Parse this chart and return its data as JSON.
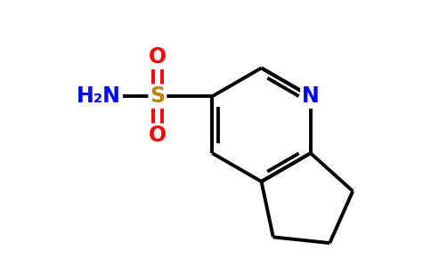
{
  "background_color": "#ffffff",
  "bond_color": "#000000",
  "nitrogen_color": "#0000ff",
  "oxygen_color": "#ff0000",
  "sulfur_color": "#b8860b",
  "h2n_color": "#0000ff",
  "line_width": 2.8,
  "figsize": [
    4.84,
    3.0
  ],
  "dpi": 100,
  "xlim": [
    0,
    9.5
  ],
  "ylim": [
    0,
    6.0
  ]
}
